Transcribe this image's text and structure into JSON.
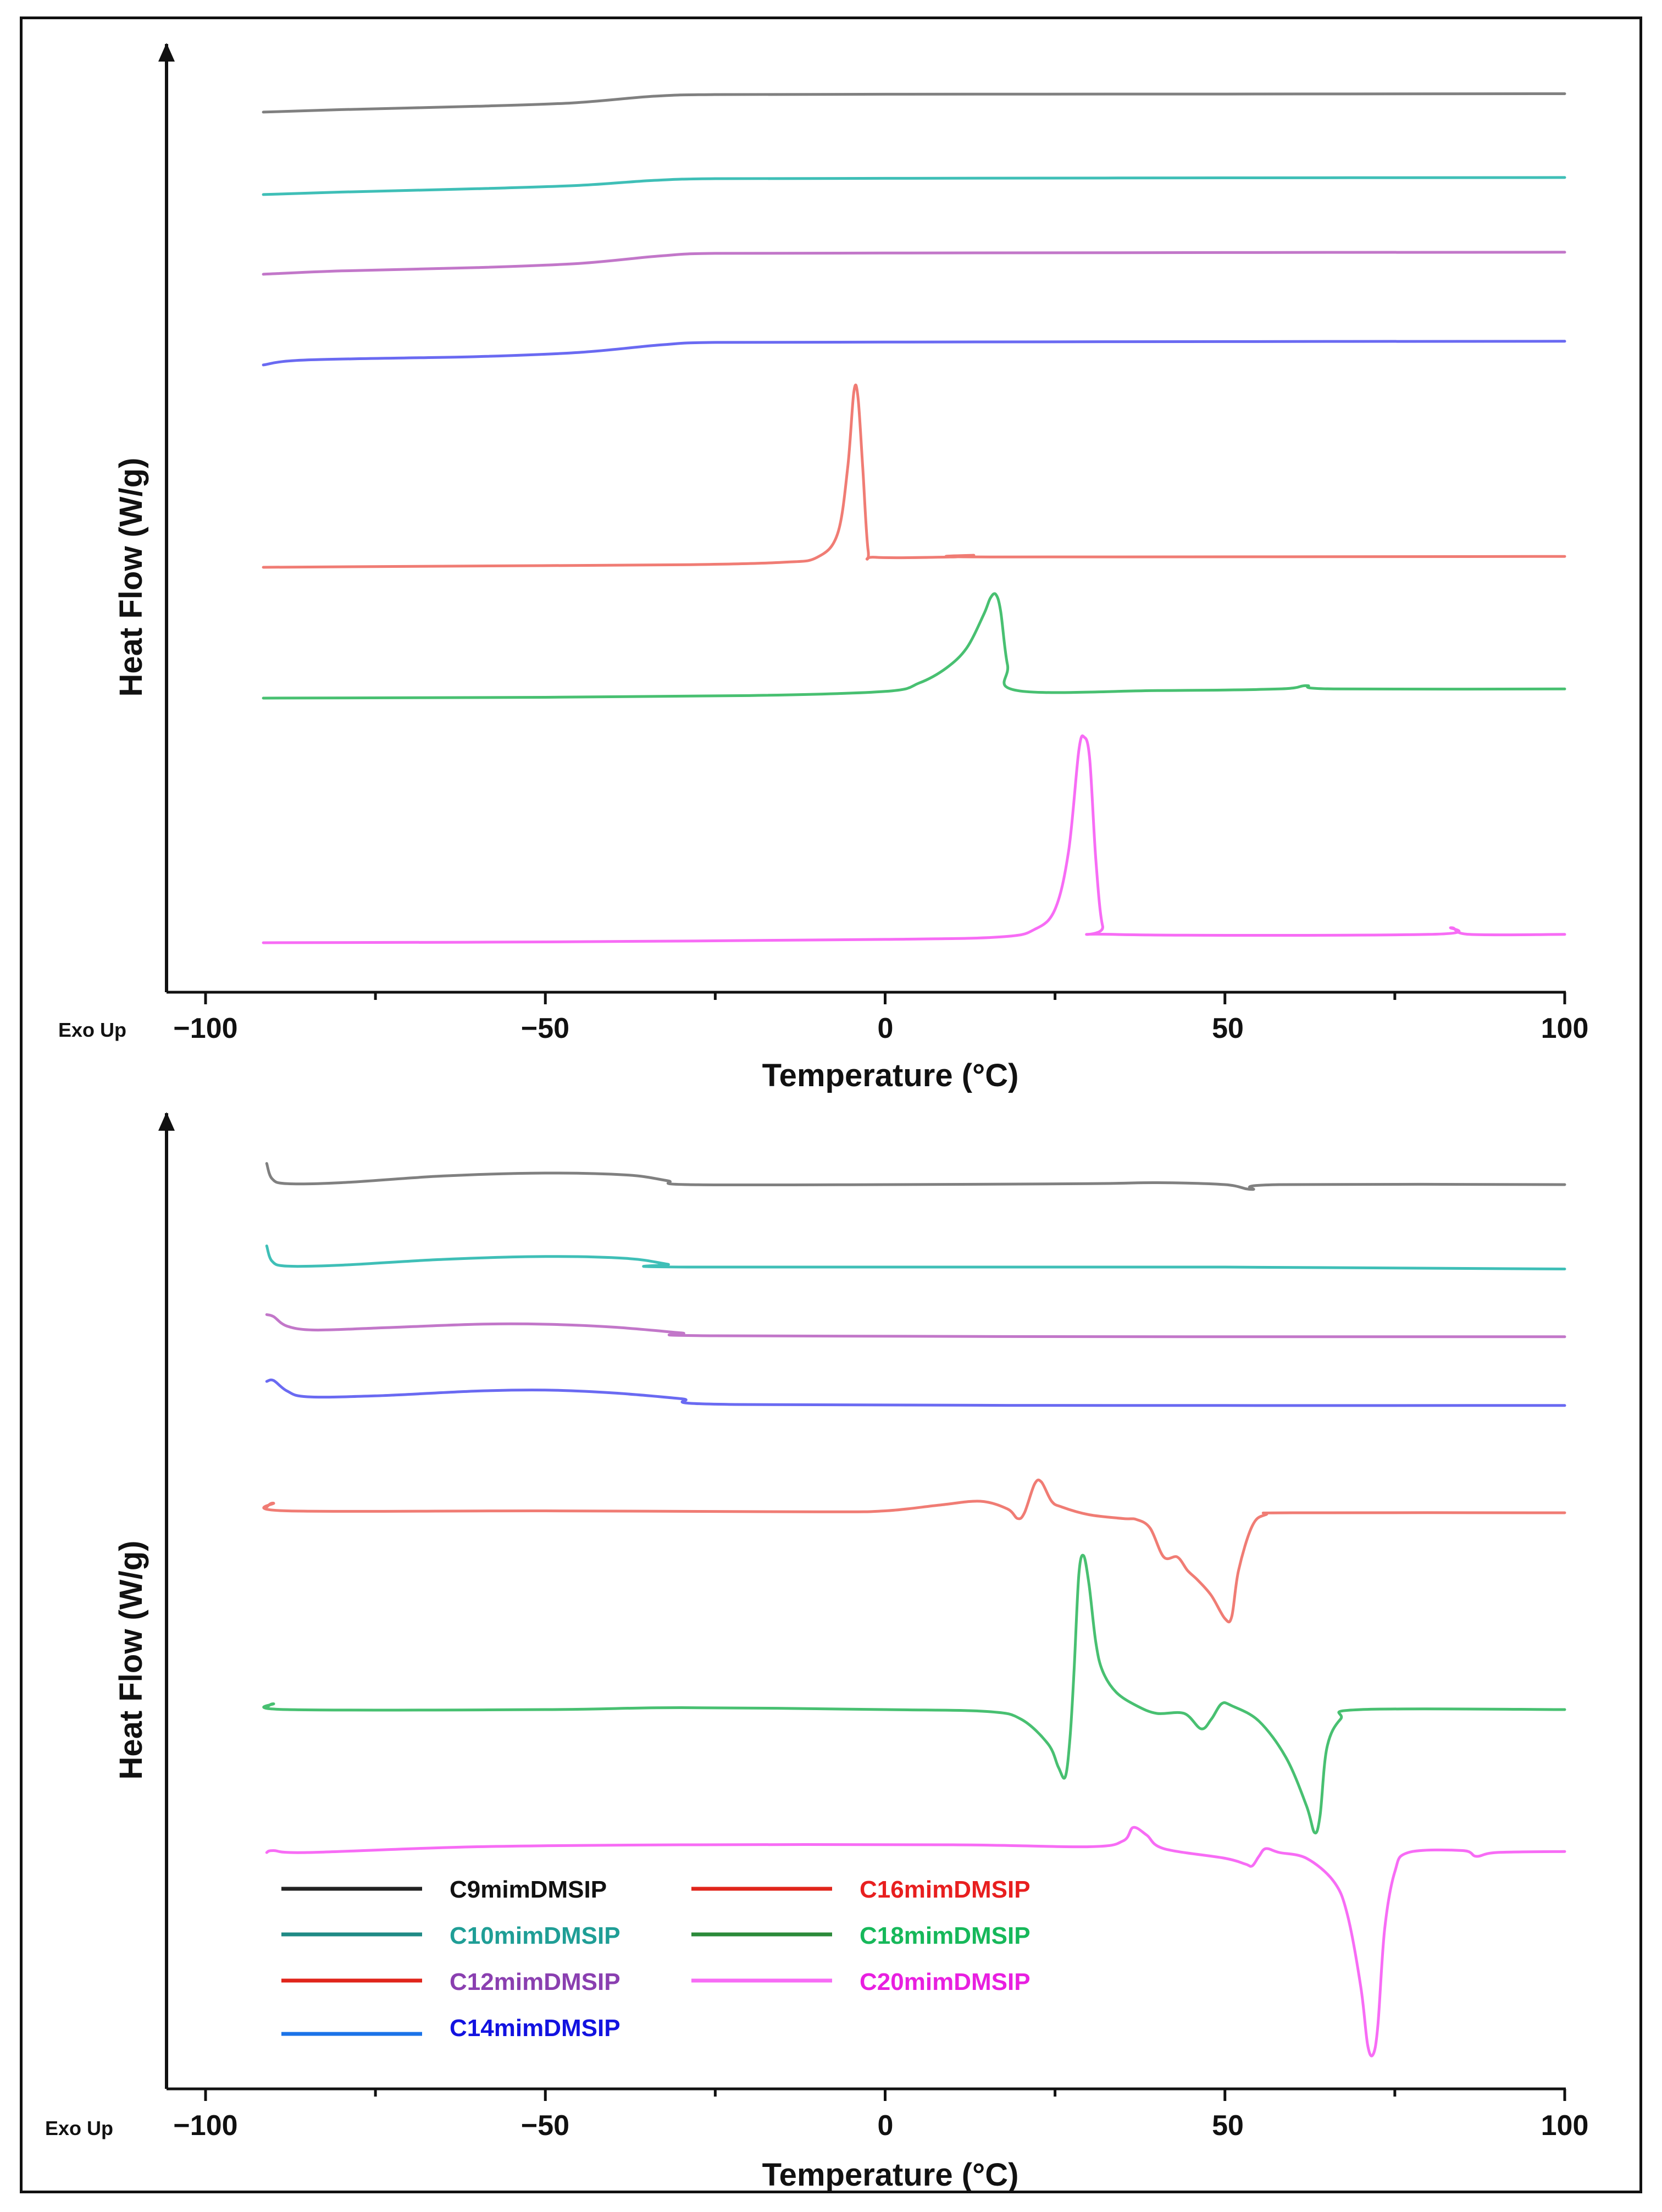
{
  "chart_data": [
    {
      "type": "line",
      "panel": "top",
      "title": "",
      "xlabel": "Temperature (°C)",
      "ylabel": "Heat Flow (W/g)",
      "corner_label": "Exo Up",
      "xlim": [
        -100,
        100
      ],
      "xticks": [
        -100,
        -50,
        0,
        50,
        100
      ],
      "tick_labels": [
        "−100",
        "−50",
        "0",
        "50",
        "100"
      ],
      "series": [
        {
          "name": "C9mimDMSIP",
          "color": "#808080",
          "points": [
            [
              -91.5,
              0.2
            ],
            [
              -80,
              0.35
            ],
            [
              -60,
              0.55
            ],
            [
              -46,
              0.75
            ],
            [
              -34,
              1.15
            ],
            [
              -25,
              1.25
            ],
            [
              0,
              1.27
            ],
            [
              50,
              1.28
            ],
            [
              100,
              1.3
            ]
          ]
        },
        {
          "name": "C10mimDMSIP",
          "color": "#3fbfb7",
          "points": [
            [
              -91.5,
              0.2
            ],
            [
              -80,
              0.35
            ],
            [
              -60,
              0.55
            ],
            [
              -45,
              0.75
            ],
            [
              -34,
              1.05
            ],
            [
              -25,
              1.15
            ],
            [
              0,
              1.17
            ],
            [
              50,
              1.2
            ],
            [
              100,
              1.22
            ]
          ]
        },
        {
          "name": "C12mimDMSIP",
          "color": "#c277c9",
          "points": [
            [
              -91.5,
              0.2
            ],
            [
              -80,
              0.4
            ],
            [
              -60,
              0.6
            ],
            [
              -45,
              0.85
            ],
            [
              -33,
              1.3
            ],
            [
              -25,
              1.45
            ],
            [
              0,
              1.47
            ],
            [
              50,
              1.5
            ],
            [
              100,
              1.52
            ]
          ]
        },
        {
          "name": "C14mimDMSIP",
          "color": "#6a6af2",
          "points": [
            [
              -91.5,
              0.2
            ],
            [
              -85,
              0.5
            ],
            [
              -60,
              0.7
            ],
            [
              -45,
              0.95
            ],
            [
              -33,
              1.4
            ],
            [
              -25,
              1.55
            ],
            [
              0,
              1.57
            ],
            [
              50,
              1.6
            ],
            [
              100,
              1.62
            ]
          ]
        },
        {
          "name": "C16mimDMSIP",
          "color": "#f07c74",
          "points": [
            [
              -91.5,
              0.0
            ],
            [
              -60,
              0.08
            ],
            [
              -30,
              0.15
            ],
            [
              -15,
              0.3
            ],
            [
              -10,
              0.6
            ],
            [
              -7,
              2.0
            ],
            [
              -5.5,
              6.0
            ],
            [
              -4.6,
              10.5
            ],
            [
              -4.0,
              10.2
            ],
            [
              -3.3,
              6.0
            ],
            [
              -2.5,
              1.0
            ],
            [
              -1.5,
              0.6
            ],
            [
              10,
              0.62
            ],
            [
              13,
              0.72
            ],
            [
              16,
              0.62
            ],
            [
              100,
              0.65
            ]
          ]
        },
        {
          "name": "C18mimDMSIP",
          "color": "#48c071",
          "points": [
            [
              -91.5,
              0.0
            ],
            [
              -50,
              0.05
            ],
            [
              -20,
              0.15
            ],
            [
              0,
              0.4
            ],
            [
              5,
              0.9
            ],
            [
              9,
              1.8
            ],
            [
              12,
              3.0
            ],
            [
              14.5,
              5.0
            ],
            [
              15.5,
              6.0
            ],
            [
              16.3,
              6.2
            ],
            [
              17,
              5.2
            ],
            [
              18,
              2.0
            ],
            [
              19.5,
              0.45
            ],
            [
              40,
              0.45
            ],
            [
              58,
              0.55
            ],
            [
              62,
              0.75
            ],
            [
              66,
              0.55
            ],
            [
              100,
              0.55
            ]
          ]
        },
        {
          "name": "C20mimDMSIP",
          "color": "#f76cf5",
          "points": [
            [
              -91.5,
              0.0
            ],
            [
              -50,
              0.05
            ],
            [
              0,
              0.2
            ],
            [
              17,
              0.35
            ],
            [
              22,
              0.8
            ],
            [
              25,
              2.0
            ],
            [
              27,
              5.5
            ],
            [
              28.5,
              11.5
            ],
            [
              29.3,
              12.3
            ],
            [
              30.1,
              11.0
            ],
            [
              31,
              5.0
            ],
            [
              32,
              1.0
            ],
            [
              33.5,
              0.5
            ],
            [
              80,
              0.5
            ],
            [
              83.3,
              0.9
            ],
            [
              86,
              0.5
            ],
            [
              100,
              0.5
            ]
          ]
        }
      ]
    },
    {
      "type": "line",
      "panel": "bottom",
      "title": "",
      "xlabel": "Temperature (°C)",
      "ylabel": "Heat Flow (W/g)",
      "corner_label": "Exo Up",
      "xlim": [
        -100,
        100
      ],
      "xticks": [
        -100,
        -50,
        0,
        50,
        100
      ],
      "tick_labels": [
        "−100",
        "−50",
        "0",
        "50",
        "100"
      ],
      "series": [
        {
          "name": "C9mimDMSIP",
          "color": "#808080",
          "points": [
            [
              -91.0,
              1.1
            ],
            [
              -90.2,
              0.3
            ],
            [
              -88,
              0.05
            ],
            [
              -80,
              0.1
            ],
            [
              -65,
              0.45
            ],
            [
              -50,
              0.6
            ],
            [
              -38,
              0.5
            ],
            [
              -32,
              0.2
            ],
            [
              -29,
              0.0
            ],
            [
              0,
              0.0
            ],
            [
              30,
              0.05
            ],
            [
              40,
              0.1
            ],
            [
              50,
              0.0
            ],
            [
              54,
              -0.25
            ],
            [
              58,
              0.0
            ],
            [
              100,
              0.0
            ]
          ]
        },
        {
          "name": "C10mimDMSIP",
          "color": "#3fbfb7",
          "points": [
            [
              -91.0,
              1.1
            ],
            [
              -90.2,
              0.3
            ],
            [
              -88,
              0.05
            ],
            [
              -80,
              0.1
            ],
            [
              -65,
              0.4
            ],
            [
              -50,
              0.55
            ],
            [
              -38,
              0.45
            ],
            [
              -32,
              0.15
            ],
            [
              -29,
              0.0
            ],
            [
              50,
              0.0
            ],
            [
              100,
              -0.1
            ]
          ]
        },
        {
          "name": "C12mimDMSIP",
          "color": "#c277c9",
          "points": [
            [
              -91.0,
              1.1
            ],
            [
              -90,
              1.0
            ],
            [
              -88,
              0.5
            ],
            [
              -84,
              0.3
            ],
            [
              -75,
              0.4
            ],
            [
              -60,
              0.6
            ],
            [
              -50,
              0.6
            ],
            [
              -40,
              0.45
            ],
            [
              -30,
              0.15
            ],
            [
              -25,
              0.0
            ],
            [
              50,
              -0.05
            ],
            [
              100,
              -0.05
            ]
          ]
        },
        {
          "name": "C14mimDMSIP",
          "color": "#6a6af2",
          "points": [
            [
              -91.0,
              1.2
            ],
            [
              -90,
              1.25
            ],
            [
              -88,
              0.7
            ],
            [
              -85,
              0.4
            ],
            [
              -75,
              0.45
            ],
            [
              -60,
              0.7
            ],
            [
              -50,
              0.75
            ],
            [
              -40,
              0.6
            ],
            [
              -30,
              0.3
            ],
            [
              -22,
              0.0
            ],
            [
              50,
              -0.05
            ],
            [
              100,
              -0.05
            ]
          ]
        },
        {
          "name": "C16mimDMSIP",
          "color": "#f07c74",
          "points": [
            [
              -91.0,
              0.3
            ],
            [
              -90,
              0.5
            ],
            [
              -88,
              0.1
            ],
            [
              -50,
              0.1
            ],
            [
              -10,
              0.05
            ],
            [
              0,
              0.1
            ],
            [
              8,
              0.4
            ],
            [
              14,
              0.6
            ],
            [
              18,
              0.2
            ],
            [
              19.5,
              -0.3
            ],
            [
              20.5,
              0.0
            ],
            [
              22.0,
              1.5
            ],
            [
              23.0,
              1.6
            ],
            [
              24.5,
              0.6
            ],
            [
              26,
              0.3
            ],
            [
              30,
              -0.1
            ],
            [
              35,
              -0.3
            ],
            [
              37,
              -0.35
            ],
            [
              39,
              -0.8
            ],
            [
              41,
              -2.3
            ],
            [
              43,
              -2.3
            ],
            [
              44.5,
              -3.0
            ],
            [
              46,
              -3.5
            ],
            [
              48,
              -4.3
            ],
            [
              50,
              -5.5
            ],
            [
              51,
              -5.4
            ],
            [
              52,
              -3.0
            ],
            [
              54,
              -0.7
            ],
            [
              56,
              -0.1
            ],
            [
              60,
              0.0
            ],
            [
              100,
              0.0
            ]
          ]
        },
        {
          "name": "C18mimDMSIP",
          "color": "#48c071",
          "points": [
            [
              -91.0,
              0.1
            ],
            [
              -90,
              0.3
            ],
            [
              -88,
              0.0
            ],
            [
              -50,
              0.0
            ],
            [
              -30,
              0.1
            ],
            [
              0,
              0.0
            ],
            [
              15,
              -0.1
            ],
            [
              20,
              -0.5
            ],
            [
              24,
              -1.8
            ],
            [
              25.5,
              -3.0
            ],
            [
              26.5,
              -3.5
            ],
            [
              27.2,
              -1.5
            ],
            [
              27.8,
              2.0
            ],
            [
              28.5,
              7.0
            ],
            [
              29.2,
              8.0
            ],
            [
              30,
              6.5
            ],
            [
              31,
              3.5
            ],
            [
              32,
              2.0
            ],
            [
              34,
              0.9
            ],
            [
              37,
              0.2
            ],
            [
              40,
              -0.2
            ],
            [
              44,
              -0.2
            ],
            [
              46.5,
              -1.0
            ],
            [
              48,
              -0.5
            ],
            [
              49.5,
              0.3
            ],
            [
              51,
              0.2
            ],
            [
              55,
              -0.6
            ],
            [
              59,
              -2.5
            ],
            [
              62,
              -5.0
            ],
            [
              63.2,
              -6.4
            ],
            [
              64,
              -5.5
            ],
            [
              65,
              -2.0
            ],
            [
              67,
              -0.5
            ],
            [
              70,
              0.0
            ],
            [
              100,
              0.0
            ]
          ]
        },
        {
          "name": "C20mimDMSIP",
          "color": "#f76cf5",
          "points": [
            [
              -91.0,
              0.0
            ],
            [
              -90,
              0.1
            ],
            [
              -85,
              0.0
            ],
            [
              -60,
              0.3
            ],
            [
              -30,
              0.4
            ],
            [
              10,
              0.4
            ],
            [
              30,
              0.3
            ],
            [
              35,
              0.6
            ],
            [
              36.5,
              1.3
            ],
            [
              38.5,
              0.9
            ],
            [
              41,
              0.2
            ],
            [
              50,
              -0.3
            ],
            [
              53,
              -0.6
            ],
            [
              54,
              -0.7
            ],
            [
              55,
              -0.2
            ],
            [
              56,
              0.2
            ],
            [
              58,
              0.0
            ],
            [
              62,
              -0.3
            ],
            [
              66,
              -1.5
            ],
            [
              68,
              -3.2
            ],
            [
              70,
              -7.0
            ],
            [
              71,
              -10.0
            ],
            [
              71.8,
              -10.5
            ],
            [
              72.5,
              -9.0
            ],
            [
              73.5,
              -4.0
            ],
            [
              75,
              -1.0
            ],
            [
              77,
              0.0
            ],
            [
              85,
              0.1
            ],
            [
              87,
              -0.2
            ],
            [
              90,
              0.0
            ],
            [
              100,
              0.05
            ]
          ]
        }
      ],
      "legend": {
        "placement": "lower-left",
        "entries": [
          {
            "label": "C9mimDMSIP",
            "line_color": "#222222",
            "text_color": "#111111"
          },
          {
            "label": "C10mimDMSIP",
            "line_color": "#1f8a85",
            "text_color": "#1f9e96"
          },
          {
            "label": "C12mimDMSIP",
            "line_color": "#e0251b",
            "text_color": "#8a3fb0"
          },
          {
            "label": "C14mimDMSIP",
            "line_color": "#1b73e8",
            "text_color": "#1212e0"
          },
          {
            "label": "C16mimDMSIP",
            "line_color": "#e0251b",
            "text_color": "#e81f1f"
          },
          {
            "label": "C18mimDMSIP",
            "line_color": "#2b8a3a",
            "text_color": "#16b85a"
          },
          {
            "label": "C20mimDMSIP",
            "line_color": "#f76cf5",
            "text_color": "#e81fe0"
          }
        ]
      }
    }
  ]
}
